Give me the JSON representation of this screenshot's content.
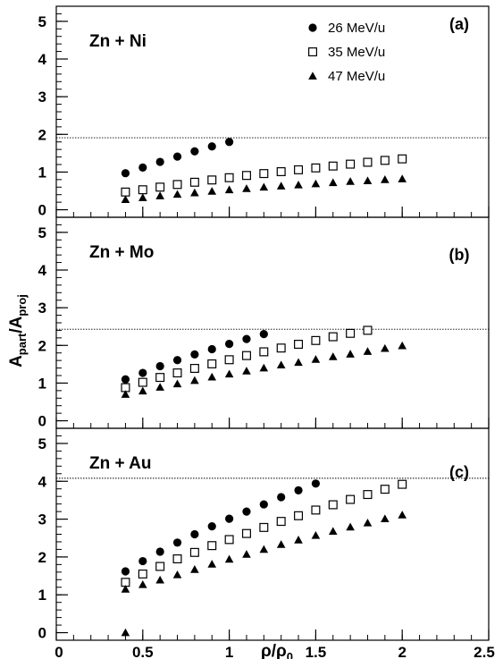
{
  "chart_data": {
    "type": "scatter",
    "xlabel": "ρ/ρ0",
    "ylabel": "Apart/Aproj",
    "xlim": [
      0,
      2.5
    ],
    "ylim": [
      -0.2,
      5.4
    ],
    "x_ticks": [
      "0",
      "0.5",
      "1",
      "1.5",
      "2",
      "2.5"
    ],
    "y_ticks": [
      "0",
      "1",
      "2",
      "3",
      "4",
      "5"
    ],
    "legend": {
      "placement": "top-right of panel (a)",
      "entries": [
        {
          "label": "26 MeV/u",
          "marker": "filled-circle"
        },
        {
          "label": "35 MeV/u",
          "marker": "open-square"
        },
        {
          "label": "47 MeV/u",
          "marker": "filled-triangle"
        }
      ]
    },
    "panels": [
      {
        "system": "Zn + Ni",
        "tag": "(a)",
        "reference_line": 1.91,
        "series": [
          {
            "name": "26 MeV/u",
            "x": [
              0.4,
              0.5,
              0.6,
              0.7,
              0.8,
              0.9,
              1.0
            ],
            "y": [
              0.97,
              1.12,
              1.27,
              1.41,
              1.55,
              1.68,
              1.8
            ]
          },
          {
            "name": "35 MeV/u",
            "x": [
              0.4,
              0.5,
              0.6,
              0.7,
              0.8,
              0.9,
              1.0,
              1.1,
              1.2,
              1.3,
              1.4,
              1.5,
              1.6,
              1.7,
              1.8,
              1.9,
              2.0
            ],
            "y": [
              0.47,
              0.53,
              0.6,
              0.67,
              0.73,
              0.79,
              0.85,
              0.91,
              0.96,
              1.01,
              1.06,
              1.11,
              1.16,
              1.21,
              1.26,
              1.31,
              1.35
            ]
          },
          {
            "name": "47 MeV/u",
            "x": [
              0.4,
              0.5,
              0.6,
              0.7,
              0.8,
              0.9,
              1.0,
              1.1,
              1.2,
              1.3,
              1.4,
              1.5,
              1.6,
              1.7,
              1.8,
              1.9,
              2.0
            ],
            "y": [
              0.27,
              0.32,
              0.37,
              0.41,
              0.45,
              0.49,
              0.53,
              0.56,
              0.6,
              0.63,
              0.66,
              0.69,
              0.72,
              0.75,
              0.77,
              0.8,
              0.82
            ]
          }
        ]
      },
      {
        "system": "Zn + Mo",
        "tag": "(b)",
        "reference_line": 2.43,
        "series": [
          {
            "name": "26 MeV/u",
            "x": [
              0.4,
              0.5,
              0.6,
              0.7,
              0.8,
              0.9,
              1.0,
              1.1,
              1.2
            ],
            "y": [
              1.1,
              1.27,
              1.45,
              1.61,
              1.76,
              1.9,
              2.04,
              2.17,
              2.3
            ]
          },
          {
            "name": "35 MeV/u",
            "x": [
              0.4,
              0.5,
              0.6,
              0.7,
              0.8,
              0.9,
              1.0,
              1.1,
              1.2,
              1.3,
              1.4,
              1.5,
              1.6,
              1.7,
              1.8
            ],
            "y": [
              0.88,
              1.02,
              1.15,
              1.27,
              1.39,
              1.51,
              1.62,
              1.73,
              1.83,
              1.93,
              2.03,
              2.13,
              2.23,
              2.32,
              2.4
            ]
          },
          {
            "name": "47 MeV/u",
            "x": [
              0.4,
              0.5,
              0.6,
              0.7,
              0.8,
              0.9,
              1.0,
              1.1,
              1.2,
              1.3,
              1.4,
              1.5,
              1.6,
              1.7,
              1.8,
              1.9,
              2.0
            ],
            "y": [
              0.7,
              0.79,
              0.89,
              0.98,
              1.07,
              1.16,
              1.24,
              1.32,
              1.4,
              1.48,
              1.55,
              1.63,
              1.7,
              1.77,
              1.84,
              1.92,
              1.99
            ]
          }
        ]
      },
      {
        "system": "Zn + Au",
        "tag": "(c)",
        "reference_line": 4.08,
        "series": [
          {
            "name": "26 MeV/u",
            "x": [
              0.4,
              0.5,
              0.6,
              0.7,
              0.8,
              0.9,
              1.0,
              1.1,
              1.2,
              1.3,
              1.4,
              1.5
            ],
            "y": [
              1.62,
              1.89,
              2.14,
              2.38,
              2.6,
              2.81,
              3.01,
              3.2,
              3.39,
              3.58,
              3.76,
              3.94
            ]
          },
          {
            "name": "35 MeV/u",
            "x": [
              0.4,
              0.5,
              0.6,
              0.7,
              0.8,
              0.9,
              1.0,
              1.1,
              1.2,
              1.3,
              1.4,
              1.5,
              1.6,
              1.7,
              1.8,
              1.9,
              2.0
            ],
            "y": [
              1.33,
              1.55,
              1.75,
              1.95,
              2.12,
              2.3,
              2.46,
              2.62,
              2.78,
              2.94,
              3.09,
              3.24,
              3.38,
              3.52,
              3.65,
              3.79,
              3.92
            ]
          },
          {
            "name": "47 MeV/u",
            "x": [
              0.4,
              0.4,
              0.5,
              0.6,
              0.7,
              0.8,
              0.9,
              1.0,
              1.1,
              1.2,
              1.3,
              1.4,
              1.5,
              1.6,
              1.7,
              1.8,
              1.9,
              2.0
            ],
            "y": [
              0.0,
              1.15,
              1.27,
              1.39,
              1.53,
              1.67,
              1.81,
              1.94,
              2.07,
              2.2,
              2.33,
              2.45,
              2.57,
              2.68,
              2.79,
              2.9,
              3.01,
              3.11
            ]
          }
        ]
      }
    ]
  }
}
